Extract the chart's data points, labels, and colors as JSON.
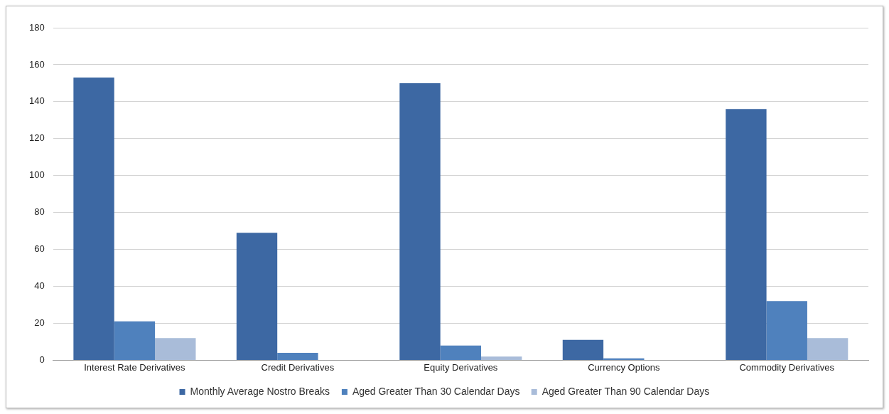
{
  "chart_data": {
    "type": "bar",
    "categories": [
      "Interest Rate Derivatives",
      "Credit Derivatives",
      "Equity Derivatives",
      "Currency Options",
      "Commodity Derivatives"
    ],
    "series": [
      {
        "name": "Monthly Average Nostro Breaks",
        "color": "#3d68a3",
        "values": [
          153,
          69,
          150,
          11,
          136
        ]
      },
      {
        "name": "Aged Greater Than 30 Calendar Days",
        "color": "#4f81bd",
        "values": [
          21,
          4,
          8,
          1,
          32
        ]
      },
      {
        "name": "Aged Greater Than 90 Calendar Days",
        "color": "#a9bcd9",
        "values": [
          12,
          null,
          2,
          null,
          12
        ]
      }
    ],
    "ylim": [
      0,
      180
    ],
    "yticks": [
      0,
      20,
      40,
      60,
      80,
      100,
      120,
      140,
      160,
      180
    ],
    "grid": "y",
    "legend": "bottom"
  }
}
